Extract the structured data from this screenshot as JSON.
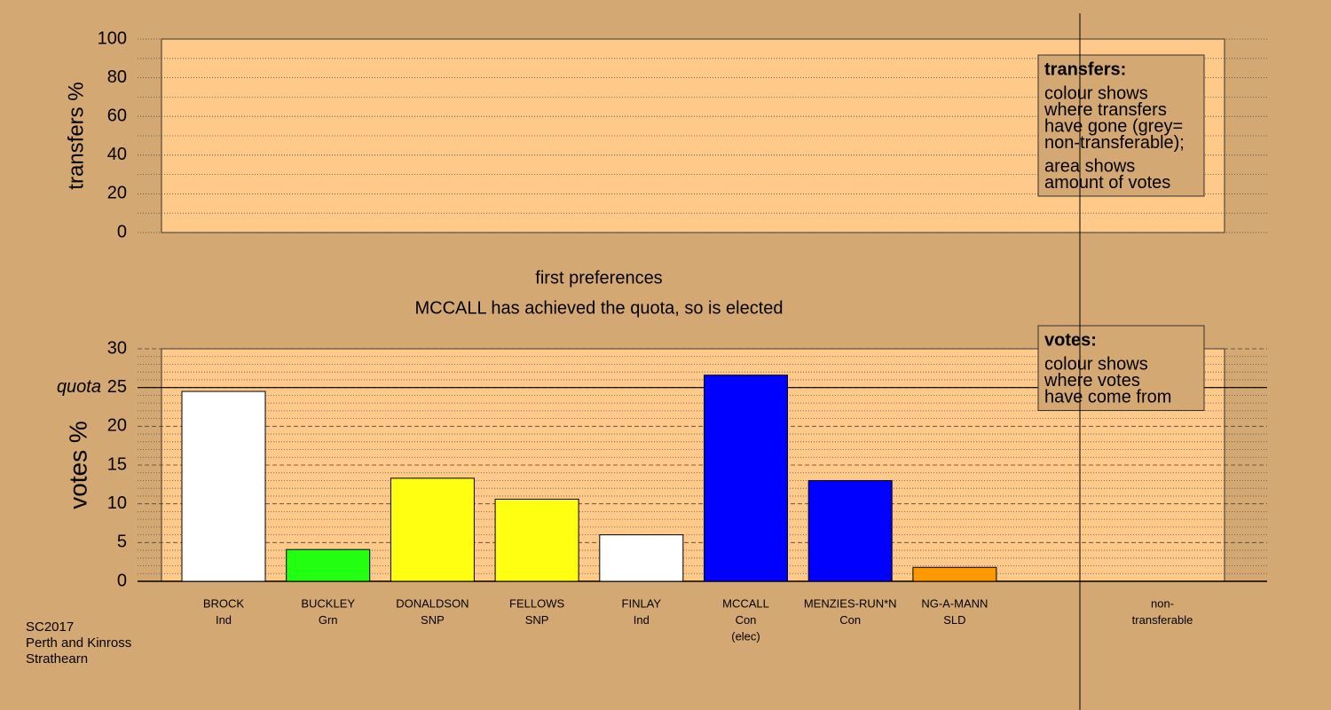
{
  "chart_data": [
    {
      "type": "bar",
      "ylabel": "transfers %",
      "ylim": [
        0,
        100
      ],
      "yticks": [
        0,
        20,
        40,
        60,
        80,
        100
      ],
      "minor_yticks": [
        10,
        30,
        50,
        70,
        90
      ],
      "note": {
        "title": "transfers:",
        "paragraphs": [
          [
            "colour shows",
            "where transfers",
            "have gone (grey=",
            "non-transferable);"
          ],
          [
            "area shows",
            "amount of votes"
          ]
        ]
      }
    },
    {
      "type": "bar",
      "title": "first preferences",
      "subtitle": "MCCALL has achieved the quota, so is elected",
      "ylabel": "votes %",
      "ylim": [
        0,
        30
      ],
      "yticks": [
        0,
        5,
        10,
        15,
        20,
        25,
        30
      ],
      "minor_yticks": [
        1,
        2,
        3,
        4,
        6,
        7,
        8,
        9,
        11,
        12,
        13,
        14,
        16,
        17,
        18,
        19,
        21,
        22,
        23,
        24,
        26,
        27,
        28,
        29
      ],
      "quota": {
        "value": 25,
        "label": "quota"
      },
      "categories": [
        [
          "BROCK",
          "Ind"
        ],
        [
          "BUCKLEY",
          "Grn"
        ],
        [
          "DONALDSON",
          "SNP"
        ],
        [
          "FELLOWS",
          "SNP"
        ],
        [
          "FINLAY",
          "Ind"
        ],
        [
          "MCCALL",
          "Con",
          "(elec)"
        ],
        [
          "MENZIES-RUN*N",
          "Con"
        ],
        [
          "NG-A-MANN",
          "SLD"
        ],
        [
          "non-",
          "transferable"
        ]
      ],
      "values": [
        24.5,
        4.1,
        13.3,
        10.6,
        6.0,
        26.6,
        13.0,
        1.8,
        0
      ],
      "colors": [
        "#ffffff",
        "#22ff11",
        "#ffff11",
        "#ffff11",
        "#ffffff",
        "#0000ff",
        "#0000ff",
        "#ff9900",
        "#999999"
      ],
      "note": {
        "title": "votes:",
        "paragraphs": [
          [
            "colour shows",
            "where votes",
            "have come from"
          ]
        ]
      }
    }
  ],
  "footer": [
    "SC2017",
    "Perth and Kinross",
    "Strathearn"
  ]
}
